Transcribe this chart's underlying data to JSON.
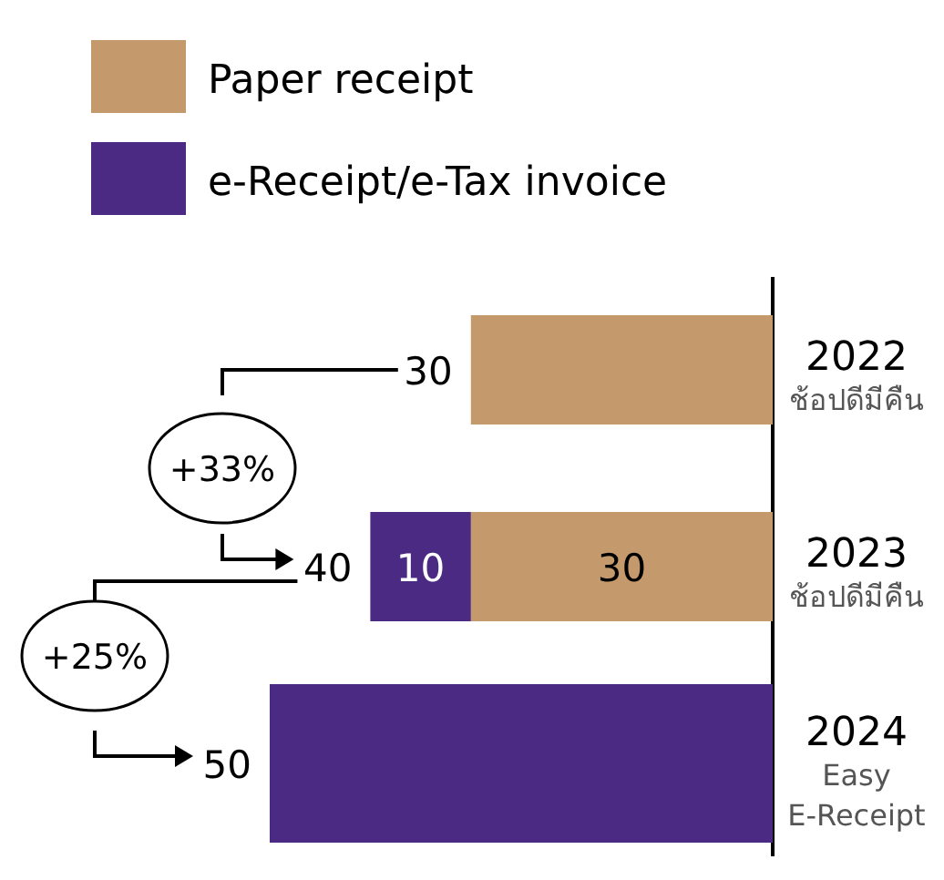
{
  "chart_data": {
    "type": "bar",
    "orientation": "horizontal",
    "stacked": true,
    "categories": [
      "2022\nช้อปดีมีคืน",
      "2023\nช้อปดีมีคืน",
      "2024\nEasy\nE-Receipt"
    ],
    "series": [
      {
        "name": "Paper receipt",
        "color": "#c49a6c",
        "values": [
          30,
          30,
          null
        ],
        "value_labels": [
          null,
          "30",
          null
        ]
      },
      {
        "name": "e-Receipt/e-Tax invoice",
        "color": "#4b2a84",
        "values": [
          null,
          10,
          50
        ],
        "value_labels": [
          null,
          "10",
          null
        ]
      }
    ],
    "totals": [
      "30",
      "40",
      "50"
    ],
    "annotations": [
      "+33%",
      "+25%"
    ],
    "tick_labels": "y",
    "legend": "top left"
  }
}
